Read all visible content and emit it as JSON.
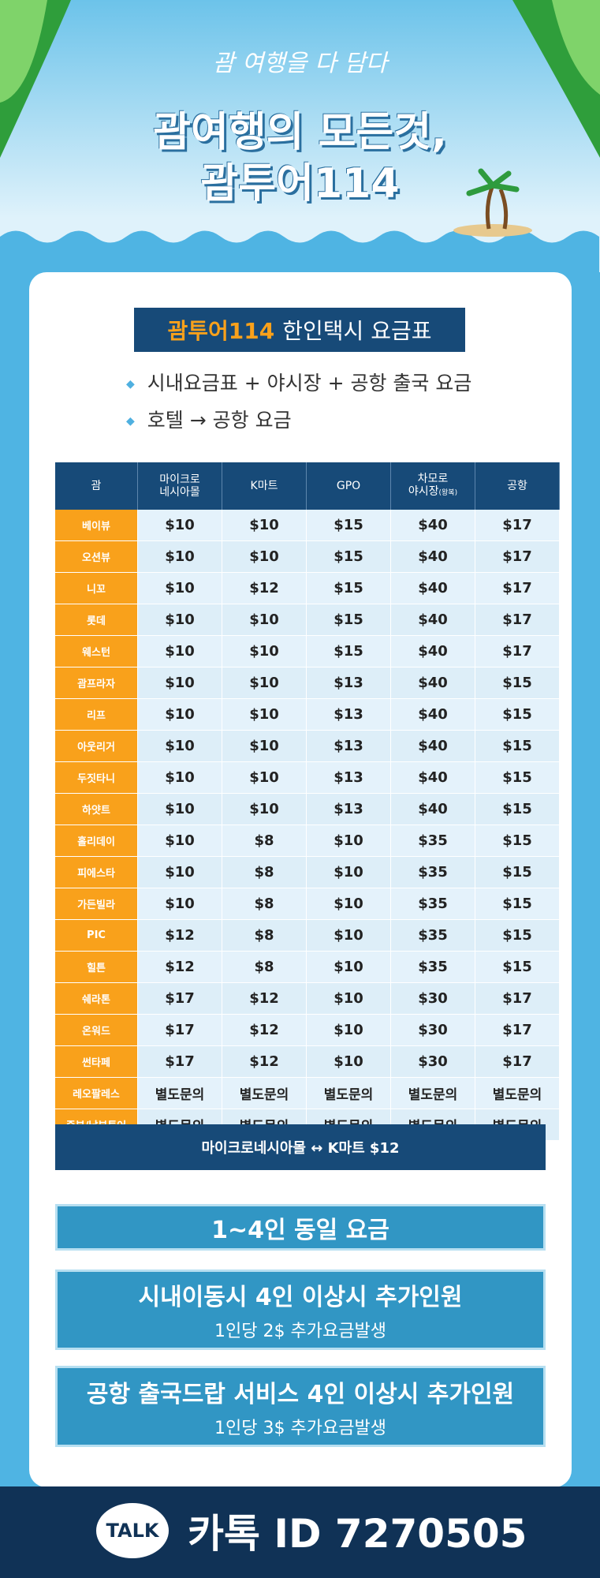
{
  "header": {
    "tagline": "괌 여행을 다 담다",
    "title_line1": "괌여행의 모든것,",
    "title_line2": "괌투어114"
  },
  "card": {
    "title_brand": "괌투어114",
    "title_rest": "한인택시 요금표",
    "bullets": [
      "시내요금표 + 야시장 + 공항 출국 요금",
      "호텔 → 공항 요금"
    ]
  },
  "table": {
    "columns": [
      {
        "label": "괌"
      },
      {
        "label": "마이크로\n네시아몰"
      },
      {
        "label": "K마트"
      },
      {
        "label": "GPO"
      },
      {
        "label": "차모로\n야시장",
        "small": "(왕복)"
      },
      {
        "label": "공항"
      }
    ],
    "rows": [
      [
        "베이뷰",
        "$10",
        "$10",
        "$15",
        "$40",
        "$17"
      ],
      [
        "오션뷰",
        "$10",
        "$10",
        "$15",
        "$40",
        "$17"
      ],
      [
        "니꼬",
        "$10",
        "$12",
        "$15",
        "$40",
        "$17"
      ],
      [
        "롯데",
        "$10",
        "$10",
        "$15",
        "$40",
        "$17"
      ],
      [
        "웨스턴",
        "$10",
        "$10",
        "$15",
        "$40",
        "$17"
      ],
      [
        "괌프라자",
        "$10",
        "$10",
        "$13",
        "$40",
        "$15"
      ],
      [
        "리프",
        "$10",
        "$10",
        "$13",
        "$40",
        "$15"
      ],
      [
        "아웃리거",
        "$10",
        "$10",
        "$13",
        "$40",
        "$15"
      ],
      [
        "두짓타니",
        "$10",
        "$10",
        "$13",
        "$40",
        "$15"
      ],
      [
        "하얏트",
        "$10",
        "$10",
        "$13",
        "$40",
        "$15"
      ],
      [
        "홀리데이",
        "$10",
        "$8",
        "$10",
        "$35",
        "$15"
      ],
      [
        "피에스타",
        "$10",
        "$8",
        "$10",
        "$35",
        "$15"
      ],
      [
        "가든빌라",
        "$10",
        "$8",
        "$10",
        "$35",
        "$15"
      ],
      [
        "PIC",
        "$12",
        "$8",
        "$10",
        "$35",
        "$15"
      ],
      [
        "힐튼",
        "$12",
        "$8",
        "$10",
        "$35",
        "$15"
      ],
      [
        "쉐라톤",
        "$17",
        "$12",
        "$10",
        "$30",
        "$17"
      ],
      [
        "온워드",
        "$17",
        "$12",
        "$10",
        "$30",
        "$17"
      ],
      [
        "썬타페",
        "$17",
        "$12",
        "$10",
        "$30",
        "$17"
      ],
      [
        "레오팔레스",
        "별도문의",
        "별도문의",
        "별도문의",
        "별도문의",
        "별도문의"
      ],
      [
        "중부/남부투어",
        "별도문의",
        "별도문의",
        "별도문의",
        "별도문의",
        "별도문의"
      ]
    ],
    "footer": "마이크로네시아몰 ↔ K마트 $12"
  },
  "notes": [
    {
      "title": "1~4인 동일 요금"
    },
    {
      "title": "시내이동시 4인 이상시 추가인원",
      "sub": "1인당 2$ 추가요금발생"
    },
    {
      "title": "공항 출국드랍 서비스 4인 이상시 추가인원",
      "sub": "1인당 3$ 추가요금발생"
    }
  ],
  "contact": {
    "badge": "TALK",
    "text": "카톡 ID 7270505"
  }
}
